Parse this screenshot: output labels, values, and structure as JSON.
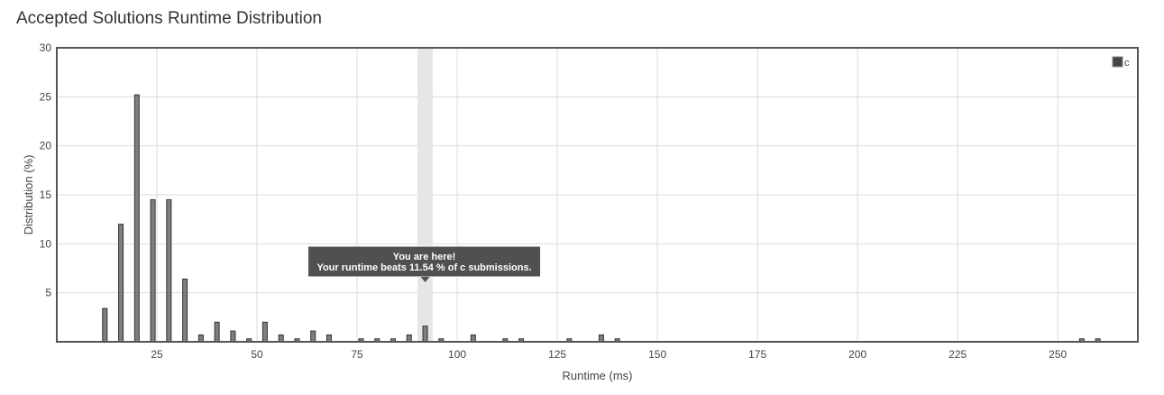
{
  "page": {
    "title": "Accepted Solutions Runtime Distribution"
  },
  "chart_data": {
    "type": "bar",
    "title": "",
    "xlabel": "Runtime (ms)",
    "ylabel": "Distribution (%)",
    "xlim": [
      0,
      270
    ],
    "ylim": [
      0,
      30
    ],
    "xticks": [
      25,
      50,
      75,
      100,
      125,
      150,
      175,
      200,
      225,
      250
    ],
    "yticks": [
      5,
      10,
      15,
      20,
      25,
      30
    ],
    "grid": true,
    "legend": {
      "position": "top-right",
      "entries": [
        "c"
      ]
    },
    "series": [
      {
        "name": "c",
        "color": "#7f7f7f",
        "x": [
          12,
          16,
          20,
          24,
          28,
          32,
          36,
          40,
          44,
          48,
          52,
          56,
          60,
          64,
          68,
          76,
          80,
          84,
          88,
          92,
          96,
          104,
          112,
          116,
          128,
          136,
          140,
          256,
          260
        ],
        "values": [
          3.4,
          12.0,
          25.2,
          14.5,
          14.5,
          6.4,
          0.7,
          2.0,
          1.1,
          0.3,
          2.0,
          0.7,
          0.3,
          1.1,
          0.7,
          0.3,
          0.3,
          0.3,
          0.7,
          1.6,
          0.3,
          0.7,
          0.3,
          0.3,
          0.3,
          0.7,
          0.3,
          0.3,
          0.3
        ]
      }
    ],
    "highlight": {
      "x": 92
    },
    "tooltip": {
      "line1": "You are here!",
      "line2": "Your runtime beats 11.54 % of c submissions."
    }
  }
}
